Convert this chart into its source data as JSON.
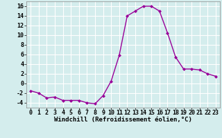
{
  "x": [
    0,
    1,
    2,
    3,
    4,
    5,
    6,
    7,
    8,
    9,
    10,
    11,
    12,
    13,
    14,
    15,
    16,
    17,
    18,
    19,
    20,
    21,
    22,
    23
  ],
  "y": [
    -1.5,
    -2.0,
    -3.0,
    -2.8,
    -3.5,
    -3.5,
    -3.5,
    -4.0,
    -4.2,
    -2.5,
    0.5,
    5.8,
    14.0,
    15.0,
    16.0,
    16.0,
    15.0,
    10.5,
    5.5,
    3.0,
    3.0,
    2.8,
    2.0,
    1.5
  ],
  "line_color": "#990099",
  "marker": "D",
  "markersize": 2,
  "linewidth": 1.0,
  "xlabel": "Windchill (Refroidissement éolien,°C)",
  "xlabel_fontsize": 6.5,
  "bg_color": "#d4eded",
  "grid_color": "#ffffff",
  "tick_fontsize": 6,
  "xlim": [
    -0.5,
    23.5
  ],
  "ylim": [
    -5,
    17
  ],
  "yticks": [
    -4,
    -2,
    0,
    2,
    4,
    6,
    8,
    10,
    12,
    14,
    16
  ],
  "xticks": [
    0,
    1,
    2,
    3,
    4,
    5,
    6,
    7,
    8,
    9,
    10,
    11,
    12,
    13,
    14,
    15,
    16,
    17,
    18,
    19,
    20,
    21,
    22,
    23
  ]
}
